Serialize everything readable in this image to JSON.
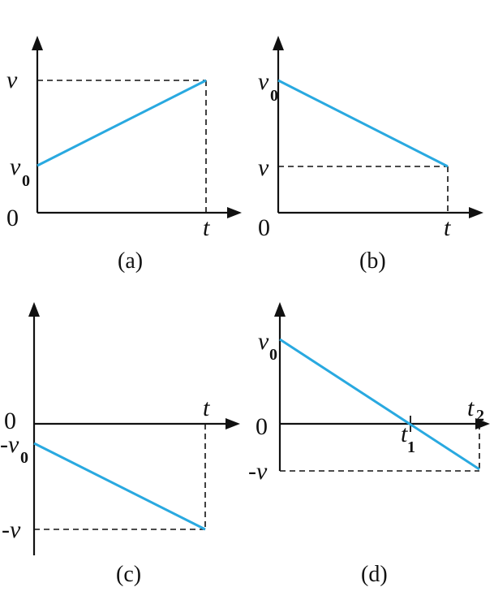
{
  "line_color": "#29a9e0",
  "axis_color": "#111111",
  "panels": [
    {
      "id": "a",
      "caption": "(a)",
      "origin_label": "0",
      "t_label": "t",
      "v0_main": "v",
      "v0_sub": "0",
      "v_label": "v"
    },
    {
      "id": "b",
      "caption": "(b)",
      "origin_label": "0",
      "t_label": "t",
      "v0_main": "v",
      "v0_sub": "0",
      "v_label": "v"
    },
    {
      "id": "c",
      "caption": "(c)",
      "origin_label": "0",
      "t_label": "t",
      "neg_v0_main": "-v",
      "neg_v0_sub": "0",
      "neg_v_label": "-v"
    },
    {
      "id": "d",
      "caption": "(d)",
      "origin_label": "0",
      "v0_main": "v",
      "v0_sub": "0",
      "neg_v_label": "-v",
      "t1_main": "t",
      "t1_sub": "1",
      "t2_main": "t",
      "t2_sub": "2"
    }
  ]
}
